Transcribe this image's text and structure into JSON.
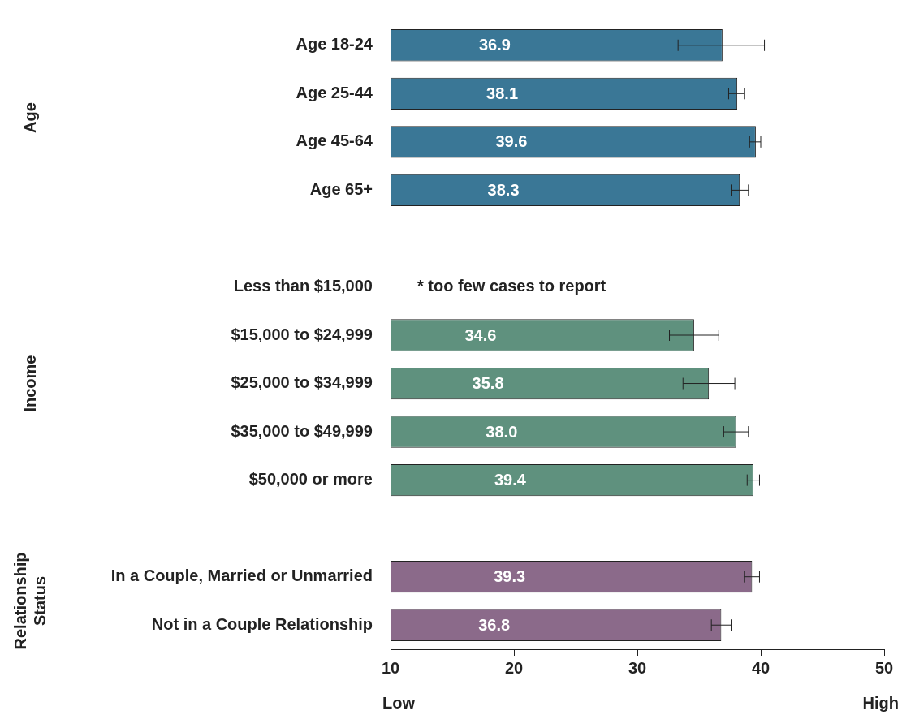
{
  "chart_data": {
    "type": "bar",
    "orientation": "horizontal",
    "categories": [
      "Age 18-24",
      "Age 25-44",
      "Age 45-64",
      "Age 65+",
      null,
      "Less than $15,000",
      "$15,000 to $24,999",
      "$25,000 to $34,999",
      "$35,000 to $49,999",
      "$50,000 or more",
      null,
      "In a Couple, Married or Unmarried",
      "Not in a Couple Relationship"
    ],
    "values": [
      36.9,
      38.1,
      39.6,
      38.3,
      null,
      null,
      34.6,
      35.8,
      38.0,
      39.4,
      null,
      39.3,
      36.8
    ],
    "errors": [
      [
        33.3,
        40.3
      ],
      [
        37.4,
        38.7
      ],
      [
        39.1,
        40.0
      ],
      [
        37.6,
        39.0
      ],
      null,
      null,
      [
        32.6,
        36.6
      ],
      [
        33.7,
        37.9
      ],
      [
        37.0,
        39.0
      ],
      [
        38.9,
        39.9
      ],
      null,
      [
        38.7,
        39.9
      ],
      [
        36.0,
        37.6
      ]
    ],
    "colors": [
      "#3a7796",
      "#3a7796",
      "#3a7796",
      "#3a7796",
      "#3a7796",
      "#5f917e",
      "#5f917e",
      "#5f917e",
      "#5f917e",
      "#5f917e",
      "#8b6a8a",
      "#8b6a8a",
      "#8b6a8a"
    ],
    "xlim": [
      10,
      50
    ],
    "xticks": [
      10,
      20,
      30,
      40,
      50
    ],
    "value_labels": [
      "36.9",
      "38.1",
      "39.6",
      "38.3",
      null,
      null,
      "34.6",
      "35.8",
      "38.0",
      "39.4",
      null,
      "39.3",
      "36.8"
    ],
    "grid": false,
    "legend": false,
    "annotations": [
      "Age",
      "Income",
      "Relationship Status",
      "Low",
      "High",
      "* too few cases to report"
    ]
  }
}
